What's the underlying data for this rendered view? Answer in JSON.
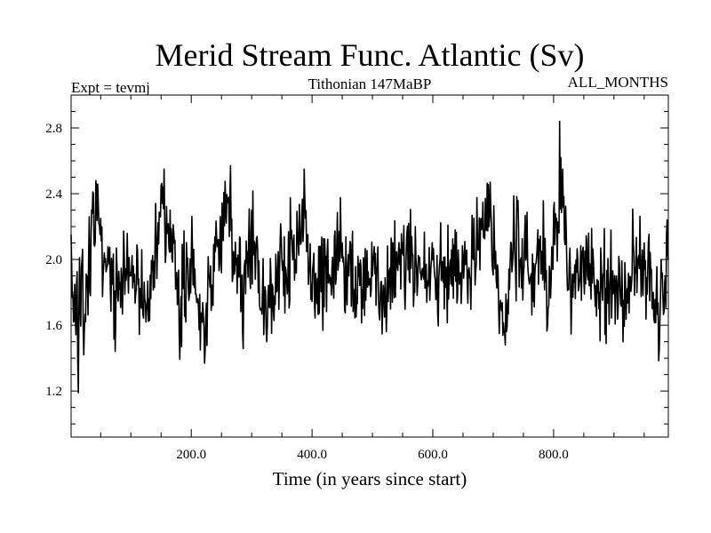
{
  "chart_data": {
    "type": "line",
    "title": "Merid Stream Func. Atlantic (Sv)",
    "subtitle_left": "Expt = tevmj",
    "subtitle_center": "Tithonian 147MaBP",
    "subtitle_right": "ALL_MONTHS",
    "xlabel": "Time (in years since start)",
    "ylabel": "",
    "xlim": [
      1,
      990
    ],
    "ylim": [
      0.92,
      3.0
    ],
    "xticks": [
      200,
      400,
      600,
      800
    ],
    "xtick_labels": [
      "200.0",
      "400.0",
      "600.0",
      "800.0"
    ],
    "xminor_step": 50,
    "yticks": [
      1.2,
      1.6,
      2.0,
      2.4,
      2.8
    ],
    "ytick_labels": [
      "1.2",
      "1.6",
      "2.0",
      "2.4",
      "2.8"
    ],
    "yminor_step": 0.1,
    "grid": false,
    "series": [
      {
        "name": "Merid Stream Func. Atlantic",
        "color": "#000000",
        "x": [
          1,
          990
        ],
        "noise_seed": 147,
        "base_level": 1.96,
        "noise_amplitude": 0.2,
        "anchors": [
          [
            1,
            2.15
          ],
          [
            5,
            1.62
          ],
          [
            10,
            1.85
          ],
          [
            13,
            1.19
          ],
          [
            18,
            1.95
          ],
          [
            22,
            1.42
          ],
          [
            28,
            1.9
          ],
          [
            35,
            2.3
          ],
          [
            42,
            2.48
          ],
          [
            50,
            2.25
          ],
          [
            60,
            1.95
          ],
          [
            75,
            1.65
          ],
          [
            100,
            1.9
          ],
          [
            125,
            1.62
          ],
          [
            150,
            2.45
          ],
          [
            155,
            2.55
          ],
          [
            165,
            2.3
          ],
          [
            180,
            1.55
          ],
          [
            200,
            2.0
          ],
          [
            215,
            1.45
          ],
          [
            222,
            1.37
          ],
          [
            240,
            2.05
          ],
          [
            265,
            2.57
          ],
          [
            285,
            1.55
          ],
          [
            300,
            2.3
          ],
          [
            325,
            1.5
          ],
          [
            350,
            2.0
          ],
          [
            372,
            2.0
          ],
          [
            387,
            2.55
          ],
          [
            395,
            1.93
          ],
          [
            430,
            1.85
          ],
          [
            450,
            2.1
          ],
          [
            470,
            1.75
          ],
          [
            500,
            1.9
          ],
          [
            520,
            1.65
          ],
          [
            550,
            2.1
          ],
          [
            570,
            1.8
          ],
          [
            600,
            2.0
          ],
          [
            630,
            1.85
          ],
          [
            660,
            1.95
          ],
          [
            680,
            2.25
          ],
          [
            695,
            2.47
          ],
          [
            710,
            1.55
          ],
          [
            720,
            1.48
          ],
          [
            740,
            2.3
          ],
          [
            760,
            1.85
          ],
          [
            780,
            2.05
          ],
          [
            790,
            1.6
          ],
          [
            800,
            2.3
          ],
          [
            805,
            2.25
          ],
          [
            810,
            2.84
          ],
          [
            815,
            2.55
          ],
          [
            830,
            1.75
          ],
          [
            855,
            2.1
          ],
          [
            875,
            1.7
          ],
          [
            900,
            1.8
          ],
          [
            915,
            1.5
          ],
          [
            935,
            1.95
          ],
          [
            950,
            2.1
          ],
          [
            965,
            1.8
          ],
          [
            975,
            1.45
          ],
          [
            985,
            1.9
          ],
          [
            990,
            2.0
          ]
        ]
      }
    ]
  }
}
